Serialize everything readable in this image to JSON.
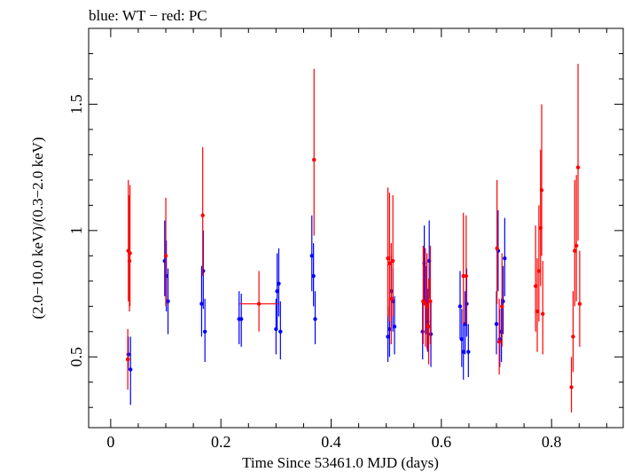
{
  "chart_data": {
    "type": "scatter",
    "title": "blue: WT − red: PC",
    "xlabel": "Time Since 53461.0 MJD (days)",
    "ylabel": "(2.0−10.0 keV)/(0.3−2.0 keV)",
    "xlim": [
      -0.04,
      0.93
    ],
    "ylim": [
      0.22,
      1.8
    ],
    "x_ticks": [
      0,
      0.2,
      0.4,
      0.6,
      0.8
    ],
    "x_tick_labels": [
      "0",
      "0.2",
      "0.4",
      "0.6",
      "0.8"
    ],
    "y_ticks": [
      0.5,
      1,
      1.5
    ],
    "y_tick_labels": [
      "0.5",
      "1",
      "1.5"
    ],
    "grid": false,
    "series": [
      {
        "color": "#0000ff",
        "points": [
          {
            "x": 0.032,
            "y": 0.51,
            "lo": 0.45,
            "hi": 0.58
          },
          {
            "x": 0.036,
            "y": 0.45,
            "lo": 0.31,
            "hi": 0.58
          },
          {
            "x": 0.098,
            "y": 0.88,
            "lo": 0.74,
            "hi": 1.04
          },
          {
            "x": 0.101,
            "y": 0.82,
            "lo": 0.68,
            "hi": 0.96
          },
          {
            "x": 0.104,
            "y": 0.72,
            "lo": 0.59,
            "hi": 0.85
          },
          {
            "x": 0.165,
            "y": 0.71,
            "lo": 0.58,
            "hi": 0.86
          },
          {
            "x": 0.168,
            "y": 0.84,
            "lo": 0.69,
            "hi": 1.0
          },
          {
            "x": 0.171,
            "y": 0.6,
            "lo": 0.48,
            "hi": 0.73
          },
          {
            "x": 0.233,
            "y": 0.65,
            "lo": 0.55,
            "hi": 0.76
          },
          {
            "x": 0.237,
            "y": 0.65,
            "lo": 0.54,
            "hi": 0.75
          },
          {
            "x": 0.3,
            "y": 0.61,
            "lo": 0.51,
            "hi": 0.73
          },
          {
            "x": 0.302,
            "y": 0.76,
            "lo": 0.61,
            "hi": 0.91
          },
          {
            "x": 0.305,
            "y": 0.79,
            "lo": 0.66,
            "hi": 0.93
          },
          {
            "x": 0.308,
            "y": 0.6,
            "lo": 0.49,
            "hi": 0.72
          },
          {
            "x": 0.365,
            "y": 0.9,
            "lo": 0.76,
            "hi": 1.06
          },
          {
            "x": 0.368,
            "y": 0.82,
            "lo": 0.7,
            "hi": 0.95
          },
          {
            "x": 0.371,
            "y": 0.65,
            "lo": 0.55,
            "hi": 0.76
          },
          {
            "x": 0.503,
            "y": 0.58,
            "lo": 0.48,
            "hi": 0.7
          },
          {
            "x": 0.506,
            "y": 0.61,
            "lo": 0.5,
            "hi": 0.73
          },
          {
            "x": 0.509,
            "y": 0.76,
            "lo": 0.62,
            "hi": 0.9
          },
          {
            "x": 0.512,
            "y": 0.72,
            "lo": 0.6,
            "hi": 0.85
          },
          {
            "x": 0.515,
            "y": 0.62,
            "lo": 0.51,
            "hi": 0.74
          },
          {
            "x": 0.566,
            "y": 0.6,
            "lo": 0.49,
            "hi": 0.72
          },
          {
            "x": 0.569,
            "y": 0.87,
            "lo": 0.72,
            "hi": 1.02
          },
          {
            "x": 0.572,
            "y": 0.72,
            "lo": 0.59,
            "hi": 0.86
          },
          {
            "x": 0.575,
            "y": 0.64,
            "lo": 0.52,
            "hi": 0.77
          },
          {
            "x": 0.578,
            "y": 0.88,
            "lo": 0.73,
            "hi": 1.04
          },
          {
            "x": 0.581,
            "y": 0.59,
            "lo": 0.46,
            "hi": 0.72
          },
          {
            "x": 0.634,
            "y": 0.7,
            "lo": 0.57,
            "hi": 0.84
          },
          {
            "x": 0.637,
            "y": 0.57,
            "lo": 0.46,
            "hi": 0.69
          },
          {
            "x": 0.64,
            "y": 0.52,
            "lo": 0.41,
            "hi": 0.63
          },
          {
            "x": 0.643,
            "y": 0.63,
            "lo": 0.51,
            "hi": 0.76
          },
          {
            "x": 0.646,
            "y": 0.71,
            "lo": 0.58,
            "hi": 0.85
          },
          {
            "x": 0.649,
            "y": 0.52,
            "lo": 0.42,
            "hi": 0.63
          },
          {
            "x": 0.7,
            "y": 0.63,
            "lo": 0.51,
            "hi": 0.76
          },
          {
            "x": 0.703,
            "y": 0.92,
            "lo": 0.76,
            "hi": 1.08
          },
          {
            "x": 0.706,
            "y": 0.57,
            "lo": 0.46,
            "hi": 0.69
          },
          {
            "x": 0.709,
            "y": 0.6,
            "lo": 0.48,
            "hi": 0.73
          },
          {
            "x": 0.712,
            "y": 0.72,
            "lo": 0.59,
            "hi": 0.86
          },
          {
            "x": 0.715,
            "y": 0.89,
            "lo": 0.74,
            "hi": 1.05
          }
        ]
      },
      {
        "color": "#ff0000",
        "points": [
          {
            "x": 0.031,
            "y": 0.49,
            "lo": 0.37,
            "hi": 0.61
          },
          {
            "x": 0.032,
            "y": 0.92,
            "lo": 0.72,
            "hi": 1.2
          },
          {
            "x": 0.034,
            "y": 0.88,
            "lo": 0.68,
            "hi": 1.14
          },
          {
            "x": 0.035,
            "y": 0.91,
            "lo": 0.7,
            "hi": 1.18
          },
          {
            "x": 0.1,
            "y": 0.9,
            "lo": 0.7,
            "hi": 1.13
          },
          {
            "x": 0.167,
            "y": 1.06,
            "lo": 0.82,
            "hi": 1.33
          },
          {
            "x": 0.269,
            "y": 0.71,
            "lo": 0.6,
            "hi": 0.84,
            "xerr": 0.035
          },
          {
            "x": 0.369,
            "y": 1.28,
            "lo": 0.98,
            "hi": 1.64
          },
          {
            "x": 0.503,
            "y": 0.89,
            "lo": 0.66,
            "hi": 1.17
          },
          {
            "x": 0.506,
            "y": 0.87,
            "lo": 0.64,
            "hi": 1.15
          },
          {
            "x": 0.509,
            "y": 0.73,
            "lo": 0.55,
            "hi": 0.95
          },
          {
            "x": 0.512,
            "y": 0.88,
            "lo": 0.66,
            "hi": 1.14
          },
          {
            "x": 0.567,
            "y": 0.72,
            "lo": 0.55,
            "hi": 0.94
          },
          {
            "x": 0.571,
            "y": 0.71,
            "lo": 0.54,
            "hi": 0.93
          },
          {
            "x": 0.574,
            "y": 0.7,
            "lo": 0.53,
            "hi": 0.91
          },
          {
            "x": 0.577,
            "y": 0.62,
            "lo": 0.47,
            "hi": 0.81
          },
          {
            "x": 0.58,
            "y": 0.72,
            "lo": 0.55,
            "hi": 0.94
          },
          {
            "x": 0.64,
            "y": 0.82,
            "lo": 0.63,
            "hi": 1.07
          },
          {
            "x": 0.645,
            "y": 0.82,
            "lo": 0.63,
            "hi": 1.06
          },
          {
            "x": 0.701,
            "y": 0.93,
            "lo": 0.71,
            "hi": 1.2
          },
          {
            "x": 0.705,
            "y": 0.56,
            "lo": 0.43,
            "hi": 0.73
          },
          {
            "x": 0.71,
            "y": 0.7,
            "lo": 0.54,
            "hi": 0.91
          },
          {
            "x": 0.771,
            "y": 0.78,
            "lo": 0.6,
            "hi": 1.02
          },
          {
            "x": 0.774,
            "y": 0.68,
            "lo": 0.52,
            "hi": 0.89
          },
          {
            "x": 0.777,
            "y": 0.84,
            "lo": 0.64,
            "hi": 1.1
          },
          {
            "x": 0.78,
            "y": 1.01,
            "lo": 0.78,
            "hi": 1.32
          },
          {
            "x": 0.782,
            "y": 1.16,
            "lo": 0.9,
            "hi": 1.5
          },
          {
            "x": 0.784,
            "y": 0.67,
            "lo": 0.51,
            "hi": 0.88
          },
          {
            "x": 0.836,
            "y": 0.38,
            "lo": 0.28,
            "hi": 0.5
          },
          {
            "x": 0.839,
            "y": 0.58,
            "lo": 0.44,
            "hi": 0.76
          },
          {
            "x": 0.842,
            "y": 0.92,
            "lo": 0.7,
            "hi": 1.2
          },
          {
            "x": 0.845,
            "y": 0.94,
            "lo": 0.72,
            "hi": 1.22
          },
          {
            "x": 0.848,
            "y": 1.25,
            "lo": 0.96,
            "hi": 1.66
          },
          {
            "x": 0.851,
            "y": 0.71,
            "lo": 0.54,
            "hi": 0.92
          }
        ]
      }
    ]
  }
}
